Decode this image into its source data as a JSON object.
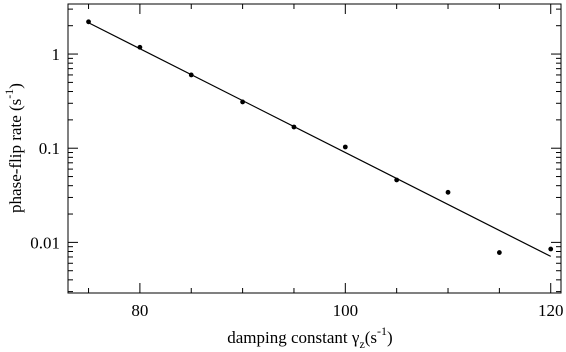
{
  "chart_data": {
    "type": "scatter",
    "xlabel": "damping constant γz(s-1)",
    "xlabel_parts": {
      "main": "damping constant γ",
      "sub": "z",
      "open": "(s",
      "sup": "-1",
      "close": ")"
    },
    "ylabel": "phase-flip rate (s-1)",
    "ylabel_parts": {
      "main": "phase-flip rate (s",
      "sup": "-1",
      "close": ")"
    },
    "xlim": [
      73,
      121
    ],
    "ylim": [
      0.0029,
      3.4
    ],
    "yscale": "log",
    "x_ticks": [
      80,
      100,
      120
    ],
    "x_tick_labels": [
      "80",
      "100",
      "120"
    ],
    "y_ticks": [
      0.01,
      0.1,
      1
    ],
    "y_tick_labels": [
      "0.01",
      "0.1",
      "1"
    ],
    "grid": false,
    "series": [
      {
        "kind": "points",
        "x": [
          75,
          80,
          85,
          90,
          95,
          100,
          105,
          110,
          115,
          120
        ],
        "y": [
          2.2,
          1.18,
          0.6,
          0.31,
          0.168,
          0.103,
          0.046,
          0.034,
          0.0078,
          0.0085
        ]
      },
      {
        "kind": "fit-line",
        "x": [
          75,
          120
        ],
        "y": [
          2.15,
          0.0071
        ]
      }
    ],
    "colors": {
      "points": "#000000",
      "line": "#000000",
      "axes": "#000000"
    }
  }
}
